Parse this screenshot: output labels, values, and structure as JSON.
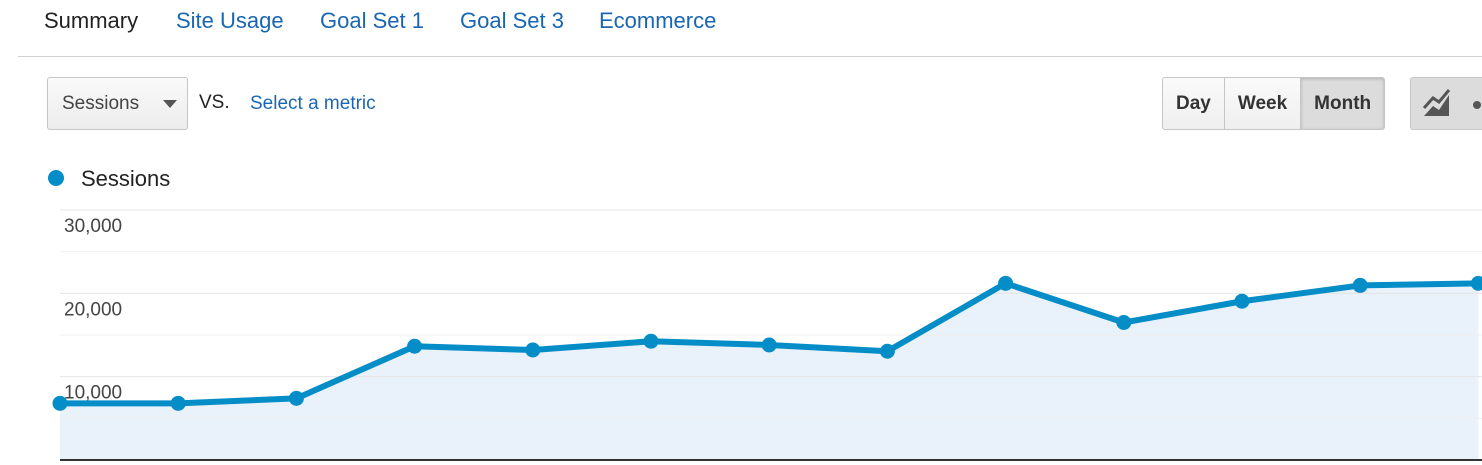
{
  "tabs": [
    "Summary",
    "Site Usage",
    "Goal Set 1",
    "Goal Set 3",
    "Ecommerce"
  ],
  "metric_selector": {
    "selected": "Sessions",
    "vs": "VS.",
    "select_metric": "Select a metric"
  },
  "period_buttons": [
    "Day",
    "Week",
    "Month"
  ],
  "active_period": "Month",
  "chart_data": {
    "type": "line",
    "categories": [
      null,
      null,
      null,
      null,
      null,
      null,
      null,
      null,
      null,
      null,
      null,
      null,
      null
    ],
    "series": [
      {
        "name": "Sessions",
        "color": "#058dc7",
        "values": [
          6800,
          6800,
          7400,
          13650,
          13200,
          14250,
          13800,
          13050,
          21200,
          16500,
          19050,
          20950,
          21200
        ]
      }
    ],
    "ylim": [
      0,
      30000
    ],
    "yticks": [
      {
        "value": 10000,
        "label": "10,000"
      },
      {
        "value": 20000,
        "label": "20,000"
      },
      {
        "value": 30000,
        "label": "30,000"
      }
    ],
    "grid": true
  }
}
